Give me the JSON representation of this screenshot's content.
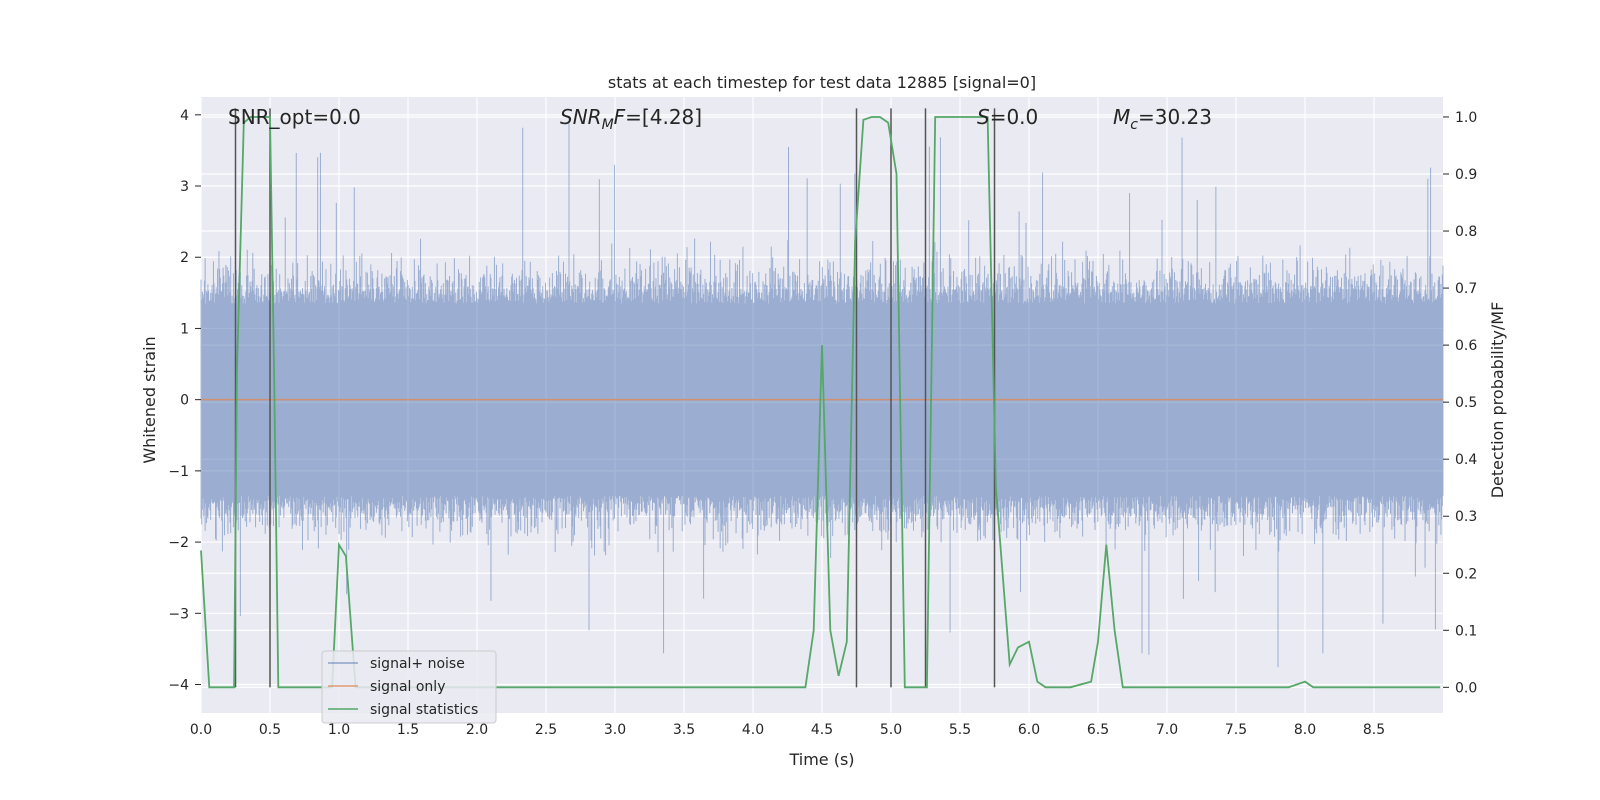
{
  "chart_data": {
    "type": "line",
    "title": "stats at each timestep for test data 12885 [signal=0]",
    "xlabel": "Time (s)",
    "ylabel": "Whitened strain",
    "ylabel_right": "Detection probability/MF",
    "xlim": [
      0.0,
      9.0
    ],
    "ylim": [
      -4.4,
      4.25
    ],
    "ylim_right": [
      -0.045,
      1.035
    ],
    "xticks": [
      "0.0",
      "0.5",
      "1.0",
      "1.5",
      "2.0",
      "2.5",
      "3.0",
      "3.5",
      "4.0",
      "4.5",
      "5.0",
      "5.5",
      "6.0",
      "6.5",
      "7.0",
      "7.5",
      "8.0",
      "8.5"
    ],
    "yticks": [
      "4",
      "3",
      "2",
      "1",
      "0",
      "−1",
      "−2",
      "−3",
      "−4"
    ],
    "yticks_right": [
      "1.0",
      "0.9",
      "0.8",
      "0.7",
      "0.6",
      "0.5",
      "0.4",
      "0.3",
      "0.2",
      "0.1",
      "0.0"
    ],
    "noise_band": {
      "typical_abs": 1.6,
      "peak_max": 3.9,
      "peak_min": -3.8
    },
    "signal_only": {
      "value": 0.0
    },
    "signal_statistics": {
      "x": [
        0.0,
        0.06,
        0.24,
        0.26,
        0.31,
        0.36,
        0.43,
        0.5,
        0.53,
        0.56,
        0.75,
        0.95,
        1.0,
        1.05,
        1.12,
        1.25,
        2.0,
        3.0,
        4.0,
        4.2,
        4.38,
        4.44,
        4.5,
        4.56,
        4.62,
        4.68,
        4.74,
        4.8,
        4.86,
        4.92,
        4.98,
        5.04,
        5.1,
        5.2,
        5.26,
        5.32,
        5.4,
        5.5,
        5.6,
        5.7,
        5.76,
        5.86,
        5.92,
        6.0,
        6.06,
        6.12,
        6.3,
        6.45,
        6.5,
        6.56,
        6.62,
        6.68,
        6.75,
        7.0,
        7.5,
        7.88,
        8.0,
        8.06,
        8.5,
        8.98
      ],
      "y": [
        0.24,
        0.0,
        0.0,
        0.55,
        0.99,
        1.0,
        1.0,
        1.0,
        0.55,
        0.0,
        0.0,
        0.0,
        0.25,
        0.23,
        0.0,
        0.0,
        0.0,
        0.0,
        0.0,
        0.0,
        0.0,
        0.1,
        0.6,
        0.1,
        0.02,
        0.08,
        0.78,
        0.995,
        1.0,
        1.0,
        0.99,
        0.9,
        0.0,
        0.0,
        0.0,
        1.0,
        1.0,
        1.0,
        1.0,
        1.0,
        0.35,
        0.04,
        0.07,
        0.08,
        0.01,
        0.0,
        0.0,
        0.01,
        0.08,
        0.25,
        0.1,
        0.0,
        0.0,
        0.0,
        0.0,
        0.0,
        0.01,
        0.0,
        0.0,
        0.0
      ]
    },
    "vlines_x": [
      0.25,
      0.5,
      4.75,
      5.0,
      5.25,
      5.75
    ],
    "annotations": {
      "snr_opt": "SNR_opt=0.0",
      "snr_mf_label": "SNR",
      "snr_mf_sub": "M",
      "snr_mf_suffix": "F",
      "snr_mf_value": "=[4.28]",
      "s_label": "S",
      "s_value": "=0.0",
      "mc_label": "M",
      "mc_sub": "c",
      "mc_value": "=30.23"
    },
    "legend": {
      "position": "lower-left",
      "entries": [
        "signal+ noise",
        "signal only",
        "signal statistics"
      ]
    },
    "colors": {
      "background": "#eaeaf2",
      "grid": "#ffffff",
      "noise": "#4c72b0",
      "signal": "#dd8452",
      "stats": "#55a868",
      "vline": "#555555"
    }
  }
}
